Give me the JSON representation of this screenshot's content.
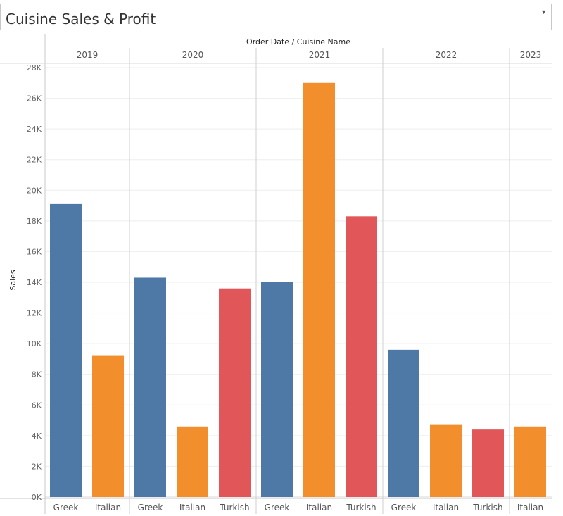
{
  "title": "Cuisine Sales & Profit",
  "colors": {
    "Greek": "#4e79a7",
    "Italian": "#f28e2b",
    "Turkish": "#e15759"
  },
  "chart_data": {
    "type": "bar",
    "header": "Order Date / Cuisine Name",
    "ylabel": "Sales",
    "ylim": [
      0,
      28000
    ],
    "yticks": [
      0,
      2000,
      4000,
      6000,
      8000,
      10000,
      12000,
      14000,
      16000,
      18000,
      20000,
      22000,
      24000,
      26000,
      28000
    ],
    "ytick_labels": [
      "0K",
      "2K",
      "4K",
      "6K",
      "8K",
      "10K",
      "12K",
      "14K",
      "16K",
      "18K",
      "20K",
      "22K",
      "24K",
      "26K",
      "28K"
    ],
    "grid": true,
    "groups": [
      {
        "year": "2019",
        "bars": [
          {
            "cuisine": "Greek",
            "value": 19100
          },
          {
            "cuisine": "Italian",
            "value": 9200
          }
        ]
      },
      {
        "year": "2020",
        "bars": [
          {
            "cuisine": "Greek",
            "value": 14300
          },
          {
            "cuisine": "Italian",
            "value": 4600
          },
          {
            "cuisine": "Turkish",
            "value": 13600
          }
        ]
      },
      {
        "year": "2021",
        "bars": [
          {
            "cuisine": "Greek",
            "value": 14000
          },
          {
            "cuisine": "Italian",
            "value": 27000
          },
          {
            "cuisine": "Turkish",
            "value": 18300
          }
        ]
      },
      {
        "year": "2022",
        "bars": [
          {
            "cuisine": "Greek",
            "value": 9600
          },
          {
            "cuisine": "Italian",
            "value": 4700
          },
          {
            "cuisine": "Turkish",
            "value": 4400
          }
        ]
      },
      {
        "year": "2023",
        "bars": [
          {
            "cuisine": "Italian",
            "value": 4600
          }
        ]
      }
    ]
  }
}
